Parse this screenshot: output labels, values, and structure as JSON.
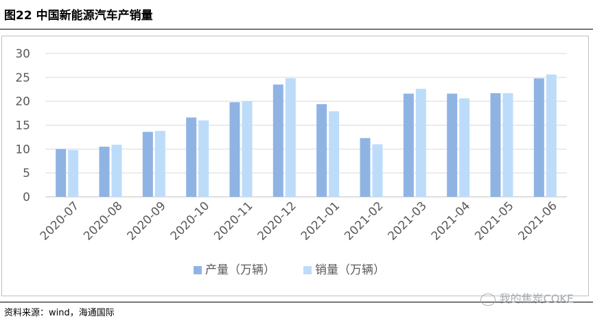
{
  "figure": {
    "title": "图22 中国新能源汽车产销量",
    "source": "资料来源：wind，海通国际",
    "watermark": "我的焦炭COKE"
  },
  "chart_data": {
    "type": "bar",
    "categories": [
      "2020-07",
      "2020-08",
      "2020-09",
      "2020-10",
      "2020-11",
      "2020-12",
      "2021-01",
      "2021-02",
      "2021-03",
      "2021-04",
      "2021-05",
      "2021-06"
    ],
    "series": [
      {
        "name": "产量（万辆）",
        "color": "#8fb4e3",
        "values": [
          10.0,
          10.5,
          13.6,
          16.6,
          19.8,
          23.5,
          19.4,
          12.3,
          21.6,
          21.6,
          21.7,
          24.8
        ]
      },
      {
        "name": "销量（万辆）",
        "color": "#bcdcfa",
        "values": [
          9.8,
          10.9,
          13.8,
          16.0,
          20.0,
          24.8,
          17.9,
          11.0,
          22.6,
          20.6,
          21.7,
          25.6
        ]
      }
    ],
    "ylim": [
      0,
      30
    ],
    "yticks": [
      0,
      5,
      10,
      15,
      20,
      25,
      30
    ],
    "grid": true,
    "legend": "bottom",
    "xlabel": "",
    "ylabel": ""
  }
}
